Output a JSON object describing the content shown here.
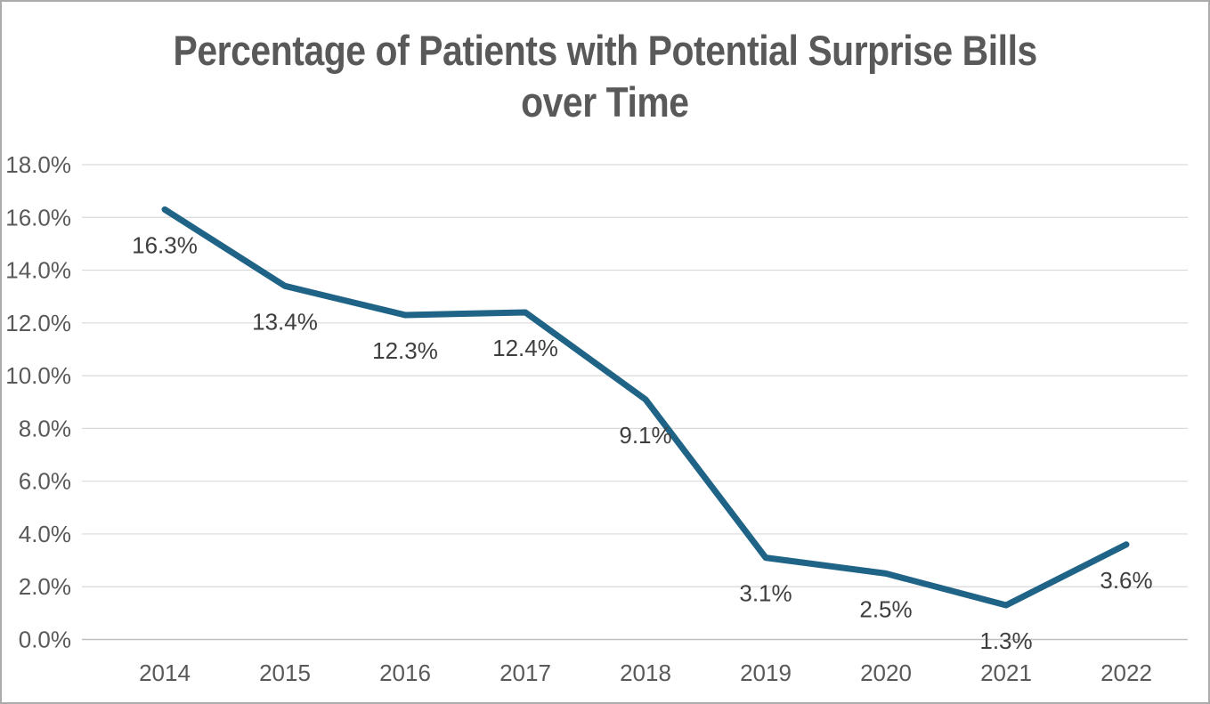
{
  "chart_data": {
    "type": "line",
    "title": "Percentage of Patients with Potential Surprise Bills over Time",
    "title_lines": [
      "Percentage of Patients with Potential Surprise Bills",
      "over Time"
    ],
    "categories": [
      "2014",
      "2015",
      "2016",
      "2017",
      "2018",
      "2019",
      "2020",
      "2021",
      "2022"
    ],
    "series": [
      {
        "name": "Percentage of patients with potential surprise bills",
        "values": [
          16.3,
          13.4,
          12.3,
          12.4,
          9.1,
          3.1,
          2.5,
          1.3,
          3.6
        ]
      }
    ],
    "data_labels": [
      "16.3%",
      "13.4%",
      "12.3%",
      "12.4%",
      "9.1%",
      "3.1%",
      "2.5%",
      "1.3%",
      "3.6%"
    ],
    "xlabel": "",
    "ylabel": "",
    "ylim": [
      0,
      18
    ],
    "ytick_step": 2,
    "ytick_labels": [
      "0.0%",
      "2.0%",
      "4.0%",
      "6.0%",
      "8.0%",
      "10.0%",
      "12.0%",
      "14.0%",
      "16.0%",
      "18.0%"
    ],
    "grid": true,
    "legend": false,
    "legend_position": "none",
    "colors": {
      "line": "#1f6386",
      "gridline": "#d9d9d9",
      "axis_line": "#bfbfbf",
      "title_text": "#595959",
      "tick_text": "#595959",
      "data_label_text": "#3f3f3f",
      "background": "#ffffff",
      "border": "#ababab"
    }
  }
}
